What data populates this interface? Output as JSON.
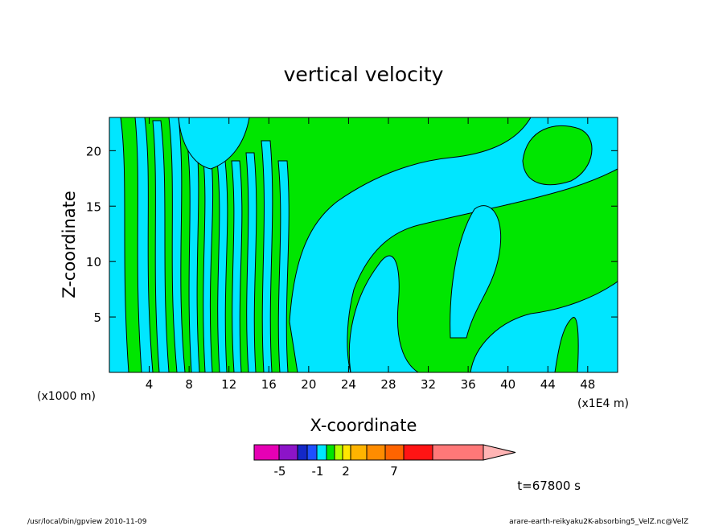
{
  "chart_data": {
    "type": "heatmap",
    "title": "vertical velocity",
    "xlabel": "X-coordinate",
    "ylabel": "Z-coordinate",
    "x_unit_left": "(x1000 m)",
    "x_unit_right": "(x1E4 m)",
    "x_ticks": [
      4,
      8,
      12,
      16,
      20,
      24,
      28,
      32,
      36,
      40,
      44,
      48
    ],
    "y_ticks": [
      5,
      10,
      15,
      20
    ],
    "xlim": [
      0,
      51
    ],
    "ylim": [
      0,
      23
    ],
    "grid": false,
    "colorbar": {
      "colors": [
        "#e600b4",
        "#8c14c8",
        "#1428c8",
        "#1e50ff",
        "#00e6ff",
        "#00e600",
        "#b4ff00",
        "#ffe600",
        "#ffb400",
        "#ff8c00",
        "#ff6400",
        "#ff1414",
        "#ff7878",
        "#ffb4b4"
      ],
      "tick_labels": [
        "-5",
        "-1",
        "2",
        "7"
      ]
    },
    "colors": {
      "negative": "#00e6ff",
      "positive": "#00e600",
      "contour": "#000000"
    },
    "time_label": "t=67800 s"
  },
  "footer": {
    "left": "/usr/local/bin/gpview   2010-11-09",
    "right": "arare-earth-reikyaku2K-absorbing5_VelZ.nc@VelZ"
  }
}
